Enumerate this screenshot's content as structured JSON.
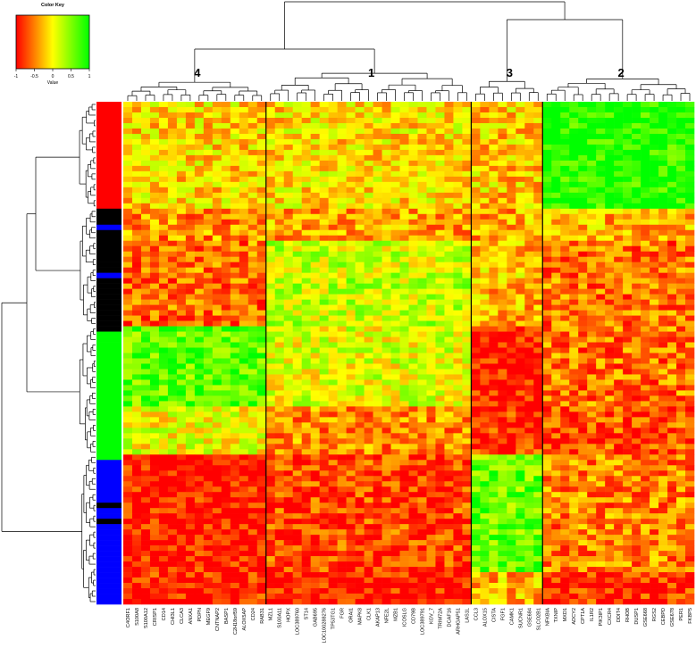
{
  "chart_data": {
    "type": "heatmap",
    "color_key": {
      "title": "Color Key",
      "xlabel": "Value",
      "ticks": [
        "-1",
        "-0.5",
        "0",
        "0.5",
        "1"
      ],
      "range": [
        -1,
        1
      ],
      "colors": [
        "#ff0000",
        "#ffff00",
        "#00ff00"
      ]
    },
    "column_clusters": [
      {
        "label": "4",
        "genes": [
          "C4ORF1",
          "S100A8",
          "S100A12",
          "CRISP1",
          "CD14",
          "CHI3L1",
          "CLCA3",
          "ANXA1",
          "PDPN",
          "MEGF9",
          "CNTNAP2",
          "BASP1",
          "C2H18orf59",
          "ALOX5AP",
          "CD24",
          "RAB31"
        ]
      },
      {
        "label": "1",
        "genes": [
          "MZL1",
          "S100A11",
          "HOPX",
          "LOC389760",
          "ST14",
          "GAB695",
          "LOC100288276",
          "TP53TG1",
          "FGR",
          "ORAI1",
          "MAPK8",
          "CLK1",
          "AKAP13",
          "NFE2L",
          "MZB1",
          "ICOSLG",
          "CD79B",
          "LOC389791",
          "KGV_7",
          "TRIM72A",
          "DCAF16",
          "ARHGAP51",
          "LAS1L"
        ]
      },
      {
        "label": "3",
        "genes": [
          "CCL3",
          "ALOX15",
          "CISTA",
          "FGF1",
          "CAMK1",
          "SUCNR1",
          "GSE684",
          "SLCO2B1"
        ]
      },
      {
        "label": "2",
        "genes": [
          "NFKBIA",
          "TXNIP",
          "MXD1",
          "ADCY2",
          "CPT1A",
          "IL1R2",
          "PIK3IP1",
          "CXCR4",
          "DDIT4",
          "RHOB",
          "DUSP1",
          "GSE668",
          "RGS2",
          "CEBPD",
          "GSE678",
          "PER1",
          "FKBP5"
        ]
      }
    ],
    "row_groups": [
      {
        "color": "#ff0000",
        "count": 20
      },
      {
        "color": "#000000",
        "count": 3
      },
      {
        "color": "#0000ff",
        "count": 1
      },
      {
        "color": "#000000",
        "count": 8
      },
      {
        "color": "#0000ff",
        "count": 1
      },
      {
        "color": "#000000",
        "count": 10
      },
      {
        "color": "#00ff00",
        "count": 24
      },
      {
        "color": "#0000ff",
        "count": 8
      },
      {
        "color": "#000000",
        "count": 1
      },
      {
        "color": "#0000ff",
        "count": 2
      },
      {
        "color": "#000000",
        "count": 1
      },
      {
        "color": "#0000ff",
        "count": 15
      }
    ],
    "block_means": [
      [
        -0.15,
        -0.1,
        -0.2,
        0.9
      ],
      [
        -0.45,
        -0.35,
        -0.35,
        -0.3
      ],
      [
        -0.55,
        0.2,
        -0.25,
        -0.55
      ],
      [
        -0.6,
        0.25,
        -0.3,
        -0.55
      ],
      [
        0.65,
        0.1,
        -0.95,
        -0.55
      ],
      [
        0.05,
        -0.45,
        -0.8,
        -0.7
      ],
      [
        -0.95,
        -0.75,
        0.6,
        -0.5
      ],
      [
        -0.9,
        -0.95,
        -0.3,
        -0.85
      ]
    ],
    "grid": false,
    "legend": "top-left"
  }
}
